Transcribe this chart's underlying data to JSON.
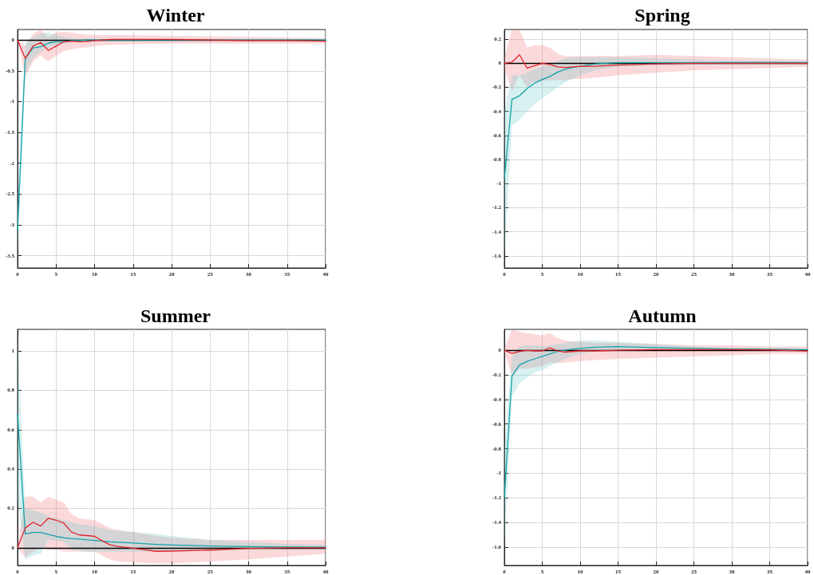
{
  "chart_data": [
    {
      "type": "line",
      "title": "Winter",
      "x": [
        0,
        1,
        2,
        3,
        4,
        5,
        6,
        7,
        8,
        9,
        10,
        12,
        15,
        20,
        25,
        30,
        35,
        40
      ],
      "xlim": [
        0,
        40
      ],
      "xticks": [
        0,
        5,
        10,
        15,
        20,
        25,
        30,
        35,
        40
      ],
      "ylim": [
        -3.7,
        0.17
      ],
      "yticks": [
        -3.5,
        -3,
        -2.5,
        -2,
        -1.5,
        -1,
        -0.5,
        0
      ],
      "grid": true,
      "marker": "none",
      "line_style": "solid",
      "ref_lines": [
        {
          "axis": "y",
          "value": 0,
          "color": "#000000"
        }
      ],
      "series": [
        {
          "color": "#e0262b",
          "values": [
            0,
            -0.3,
            -0.1,
            -0.04,
            -0.17,
            -0.1,
            -0.03,
            -0.02,
            -0.03,
            -0.025,
            -0.01,
            0.01,
            0.01,
            0.01,
            0,
            -0.01,
            -0.01,
            -0.02
          ],
          "lower": [
            0,
            -0.6,
            -0.35,
            -0.25,
            -0.35,
            -0.25,
            -0.18,
            -0.15,
            -0.13,
            -0.12,
            -0.1,
            -0.08,
            -0.07,
            -0.06,
            -0.06,
            -0.06,
            -0.06,
            -0.06
          ],
          "upper": [
            0,
            -0.1,
            0.1,
            0.17,
            0.05,
            0.12,
            0.13,
            0.12,
            0.1,
            0.09,
            0.08,
            0.08,
            0.08,
            0.07,
            0.06,
            0.05,
            0.04,
            0.03
          ]
        },
        {
          "color": "#13a3a8",
          "values": [
            -3.08,
            -0.3,
            -0.13,
            -0.11,
            -0.05,
            -0.03,
            -0.03,
            -0.01,
            -0.01,
            0,
            0,
            0,
            0,
            0,
            0,
            0,
            0,
            0
          ],
          "lower": [
            -3.5,
            -0.55,
            -0.3,
            -0.2,
            -0.12,
            -0.08,
            -0.06,
            -0.04,
            -0.03,
            -0.02,
            -0.02,
            -0.01,
            -0.01,
            -0.01,
            -0.01,
            -0.01,
            -0.01,
            -0.01
          ],
          "upper": [
            -2.7,
            -0.05,
            0.05,
            0.1,
            0.12,
            0.08,
            0.05,
            0.03,
            0.02,
            0.02,
            0.02,
            0.01,
            0.01,
            0.01,
            0.01,
            0.01,
            0.01,
            0.01
          ]
        }
      ]
    },
    {
      "type": "line",
      "title": "Spring",
      "x": [
        0,
        1,
        2,
        3,
        4,
        5,
        6,
        7,
        8,
        9,
        10,
        12,
        15,
        20,
        25,
        30,
        35,
        40
      ],
      "xlim": [
        0,
        40
      ],
      "xticks": [
        0,
        5,
        10,
        15,
        20,
        25,
        30,
        35,
        40
      ],
      "ylim": [
        -1.7,
        0.28
      ],
      "yticks": [
        -1.6,
        -1.4,
        -1.2,
        -1,
        -0.8,
        -0.6,
        -0.4,
        -0.2,
        0,
        0.2
      ],
      "grid": true,
      "marker": "none",
      "line_style": "solid",
      "ref_lines": [
        {
          "axis": "y",
          "value": 0,
          "color": "#000000"
        }
      ],
      "series": [
        {
          "color": "#e0262b",
          "values": [
            0,
            0.01,
            0.07,
            -0.04,
            -0.02,
            0,
            -0.01,
            -0.03,
            -0.035,
            -0.03,
            -0.025,
            -0.025,
            -0.015,
            -0.005,
            0,
            0,
            0,
            0
          ],
          "lower": [
            -0.05,
            -0.23,
            -0.1,
            -0.2,
            -0.15,
            -0.15,
            -0.14,
            -0.14,
            -0.14,
            -0.13,
            -0.13,
            -0.12,
            -0.1,
            -0.08,
            -0.06,
            -0.05,
            -0.04,
            -0.03
          ],
          "upper": [
            0.05,
            0.28,
            0.28,
            0.13,
            0.15,
            0.15,
            0.13,
            0.08,
            0.06,
            0.06,
            0.06,
            0.06,
            0.06,
            0.07,
            0.06,
            0.05,
            0.04,
            0.03
          ]
        },
        {
          "color": "#13a3a8",
          "values": [
            -0.96,
            -0.3,
            -0.27,
            -0.21,
            -0.165,
            -0.135,
            -0.11,
            -0.075,
            -0.05,
            -0.035,
            -0.025,
            -0.005,
            0.005,
            0.005,
            0.004,
            0.006,
            0.008,
            0.006
          ],
          "lower": [
            -1.6,
            -0.52,
            -0.47,
            -0.4,
            -0.34,
            -0.29,
            -0.25,
            -0.2,
            -0.16,
            -0.13,
            -0.1,
            -0.06,
            -0.03,
            -0.02,
            -0.01,
            -0.01,
            -0.01,
            -0.01
          ],
          "upper": [
            -0.4,
            -0.1,
            -0.1,
            -0.08,
            -0.05,
            -0.03,
            0,
            0.02,
            0.04,
            0.05,
            0.05,
            0.05,
            0.05,
            0.04,
            0.03,
            0.02,
            0.01,
            0.01
          ]
        }
      ]
    },
    {
      "type": "line",
      "title": "Summer",
      "x": [
        0,
        1,
        2,
        3,
        4,
        5,
        6,
        7,
        8,
        9,
        10,
        11,
        12,
        13,
        15,
        18,
        20,
        25,
        30,
        35,
        40
      ],
      "xlim": [
        0,
        40
      ],
      "xticks": [
        0,
        5,
        10,
        15,
        20,
        25,
        30,
        35,
        40
      ],
      "ylim": [
        -0.09,
        1.11
      ],
      "yticks": [
        0,
        0.2,
        0.4,
        0.6,
        0.8,
        1
      ],
      "grid": true,
      "marker": "none",
      "line_style": "solid",
      "ref_lines": [
        {
          "axis": "y",
          "value": 0,
          "color": "#000000"
        }
      ],
      "series": [
        {
          "color": "#e0262b",
          "values": [
            0,
            0.1,
            0.13,
            0.11,
            0.15,
            0.14,
            0.125,
            0.08,
            0.065,
            0.062,
            0.058,
            0.035,
            0.015,
            0.007,
            -0.002,
            -0.018,
            -0.017,
            -0.012,
            -0.003,
            0,
            0
          ],
          "lower": [
            0,
            -0.05,
            -0.02,
            0,
            -0.01,
            -0.01,
            -0.02,
            -0.02,
            -0.02,
            -0.02,
            -0.02,
            -0.04,
            -0.06,
            -0.07,
            -0.075,
            -0.08,
            -0.08,
            -0.07,
            -0.06,
            -0.045,
            -0.03
          ],
          "upper": [
            0,
            0.26,
            0.26,
            0.23,
            0.26,
            0.245,
            0.23,
            0.17,
            0.15,
            0.145,
            0.14,
            0.12,
            0.1,
            0.09,
            0.08,
            0.06,
            0.05,
            0.04,
            0.04,
            0.04,
            0.04
          ]
        },
        {
          "color": "#13a3a8",
          "values": [
            0.68,
            0.07,
            0.078,
            0.078,
            0.068,
            0.058,
            0.05,
            0.046,
            0.044,
            0.04,
            0.037,
            0.033,
            0.03,
            0.028,
            0.024,
            0.017,
            0.014,
            0.009,
            0.006,
            0.004,
            0.003
          ],
          "lower": [
            0.25,
            -0.06,
            -0.04,
            -0.03,
            0.04,
            0.035,
            0.03,
            -0.01,
            -0.015,
            -0.02,
            -0.02,
            -0.02,
            -0.02,
            -0.02,
            -0.02,
            -0.02,
            -0.02,
            -0.015,
            -0.01,
            -0.01,
            -0.01
          ],
          "upper": [
            1.08,
            0.2,
            0.19,
            0.18,
            0.16,
            0.15,
            0.14,
            0.13,
            0.12,
            0.115,
            0.11,
            0.1,
            0.09,
            0.085,
            0.08,
            0.07,
            0.06,
            0.04,
            0.03,
            0.02,
            0.015
          ]
        }
      ]
    },
    {
      "type": "line",
      "title": "Autumn",
      "x": [
        0,
        1,
        2,
        3,
        4,
        5,
        6,
        7,
        8,
        9,
        10,
        12,
        15,
        20,
        25,
        30,
        35,
        40
      ],
      "xlim": [
        0,
        40
      ],
      "xticks": [
        0,
        5,
        10,
        15,
        20,
        25,
        30,
        35,
        40
      ],
      "ylim": [
        -1.75,
        0.17
      ],
      "yticks": [
        -1.6,
        -1.4,
        -1.2,
        -1,
        -0.8,
        -0.6,
        -0.4,
        -0.2,
        0
      ],
      "grid": true,
      "marker": "none",
      "line_style": "solid",
      "ref_lines": [
        {
          "axis": "y",
          "value": 0,
          "color": "#000000"
        }
      ],
      "series": [
        {
          "color": "#e0262b",
          "values": [
            0,
            -0.025,
            -0.01,
            0,
            -0.005,
            -0.005,
            0.02,
            -0.005,
            -0.015,
            -0.01,
            -0.005,
            -0.005,
            0,
            0.005,
            0.005,
            0.005,
            0.003,
            -0.006
          ],
          "lower": [
            -0.02,
            -0.2,
            -0.15,
            -0.15,
            -0.14,
            -0.13,
            -0.1,
            -0.1,
            -0.1,
            -0.095,
            -0.09,
            -0.08,
            -0.07,
            -0.06,
            -0.05,
            -0.04,
            -0.03,
            -0.03
          ],
          "upper": [
            0.02,
            0.17,
            0.15,
            0.14,
            0.13,
            0.12,
            0.14,
            0.1,
            0.08,
            0.075,
            0.07,
            0.06,
            0.06,
            0.05,
            0.04,
            0.04,
            0.03,
            0.03
          ]
        },
        {
          "color": "#13a3a8",
          "values": [
            -1.2,
            -0.21,
            -0.12,
            -0.09,
            -0.07,
            -0.05,
            -0.03,
            -0.01,
            0,
            0.01,
            0.015,
            0.025,
            0.03,
            0.022,
            0.015,
            0.01,
            0.008,
            0.006
          ],
          "lower": [
            -1.6,
            -0.38,
            -0.27,
            -0.22,
            -0.18,
            -0.16,
            -0.13,
            -0.1,
            -0.07,
            -0.05,
            -0.03,
            -0.01,
            0,
            0,
            0,
            -0.005,
            -0.005,
            -0.005
          ],
          "upper": [
            -0.8,
            -0.05,
            0.03,
            0.04,
            0.04,
            0.03,
            0.04,
            0.05,
            0.06,
            0.07,
            0.08,
            0.08,
            0.07,
            0.05,
            0.03,
            0.02,
            0.015,
            0.01
          ]
        }
      ]
    }
  ]
}
